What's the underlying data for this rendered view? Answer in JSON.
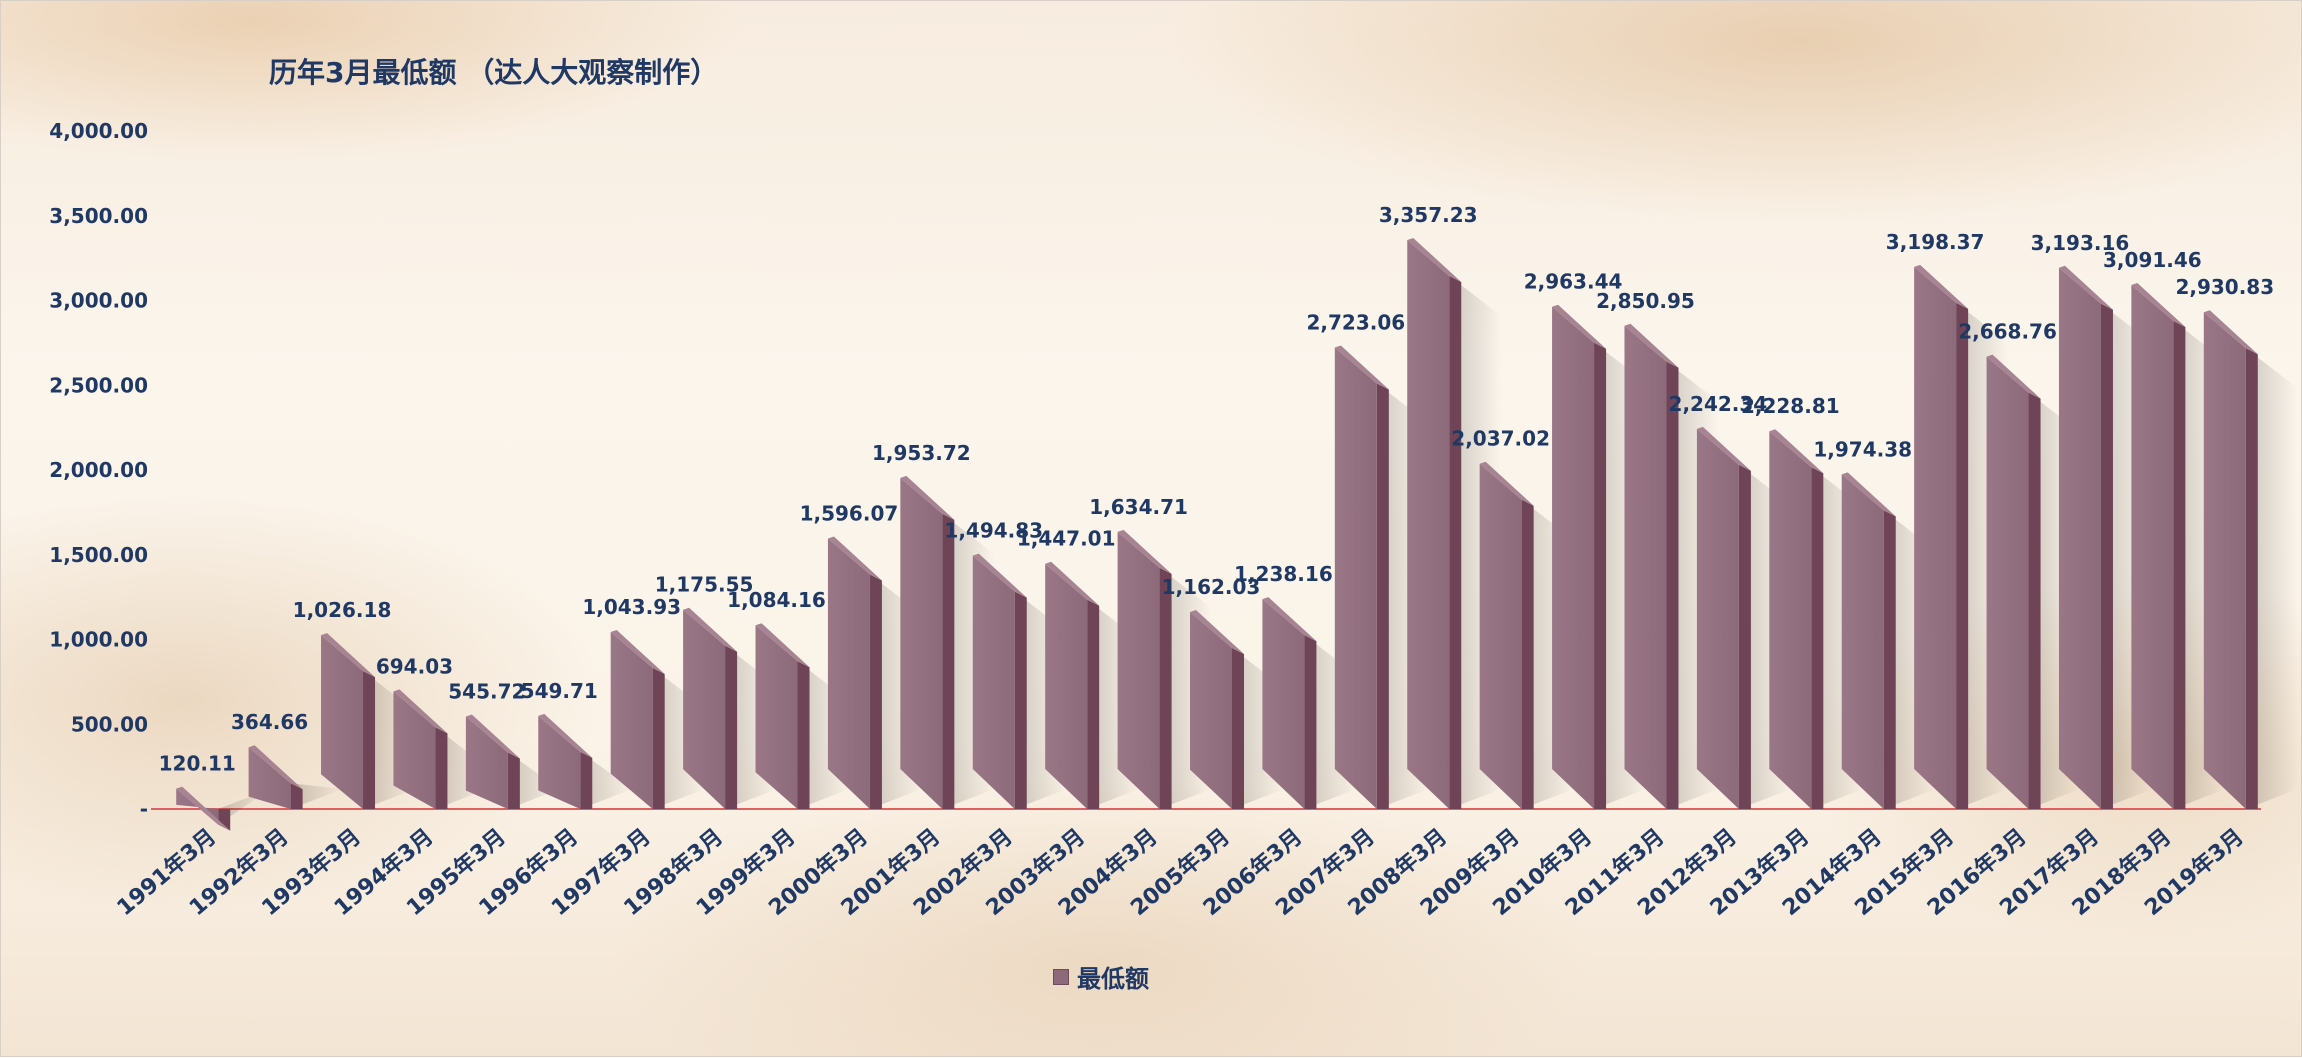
{
  "chart_data": {
    "type": "bar",
    "title": "历年3月最低额 （达人大观察制作）",
    "categories": [
      "1991年3月",
      "1992年3月",
      "1993年3月",
      "1994年3月",
      "1995年3月",
      "1996年3月",
      "1997年3月",
      "1998年3月",
      "1999年3月",
      "2000年3月",
      "2001年3月",
      "2002年3月",
      "2003年3月",
      "2004年3月",
      "2005年3月",
      "2006年3月",
      "2007年3月",
      "2008年3月",
      "2009年3月",
      "2010年3月",
      "2011年3月",
      "2012年3月",
      "2013年3月",
      "2014年3月",
      "2015年3月",
      "2016年3月",
      "2017年3月",
      "2018年3月",
      "2019年3月"
    ],
    "series": [
      {
        "name": "最低额",
        "values": [
          120.11,
          364.66,
          1026.18,
          694.03,
          545.72,
          549.71,
          1043.93,
          1175.55,
          1084.16,
          1596.07,
          1953.72,
          1494.83,
          1447.01,
          1634.71,
          1162.03,
          1238.16,
          2723.06,
          3357.23,
          2037.02,
          2963.44,
          2850.95,
          2242.34,
          2228.81,
          1974.38,
          3198.37,
          2668.76,
          3193.16,
          3091.46,
          2930.83
        ],
        "value_labels": [
          "120.11",
          "364.66",
          "1,026.18",
          "694.03",
          "545.72",
          "549.71",
          "1,043.93",
          "1,175.55",
          "1,084.16",
          "1,596.07",
          "1,953.72",
          "1,494.83",
          "1,447.01",
          "1,634.71",
          "1,162.03",
          "1,238.16",
          "2,723.06",
          "3,357.23",
          "2,037.02",
          "2,963.44",
          "2,850.95",
          "2,242.34",
          "2,228.81",
          "1,974.38",
          "3,198.37",
          "2,668.76",
          "3,193.16",
          "3,091.46",
          "2,930.83"
        ]
      }
    ],
    "yticks": [
      "-",
      "500.00",
      "1,000.00",
      "1,500.00",
      "2,000.00",
      "2,500.00",
      "3,000.00",
      "3,500.00",
      "4,000.00"
    ],
    "ylim": [
      0,
      4000
    ],
    "legend_position": "bottom",
    "grid": false,
    "colors": {
      "bar_front": "#8c6a79",
      "bar_side": "#6e4456",
      "bar_top": "#a88493",
      "axis_line": "#e06060",
      "text": "#1f3864"
    }
  }
}
